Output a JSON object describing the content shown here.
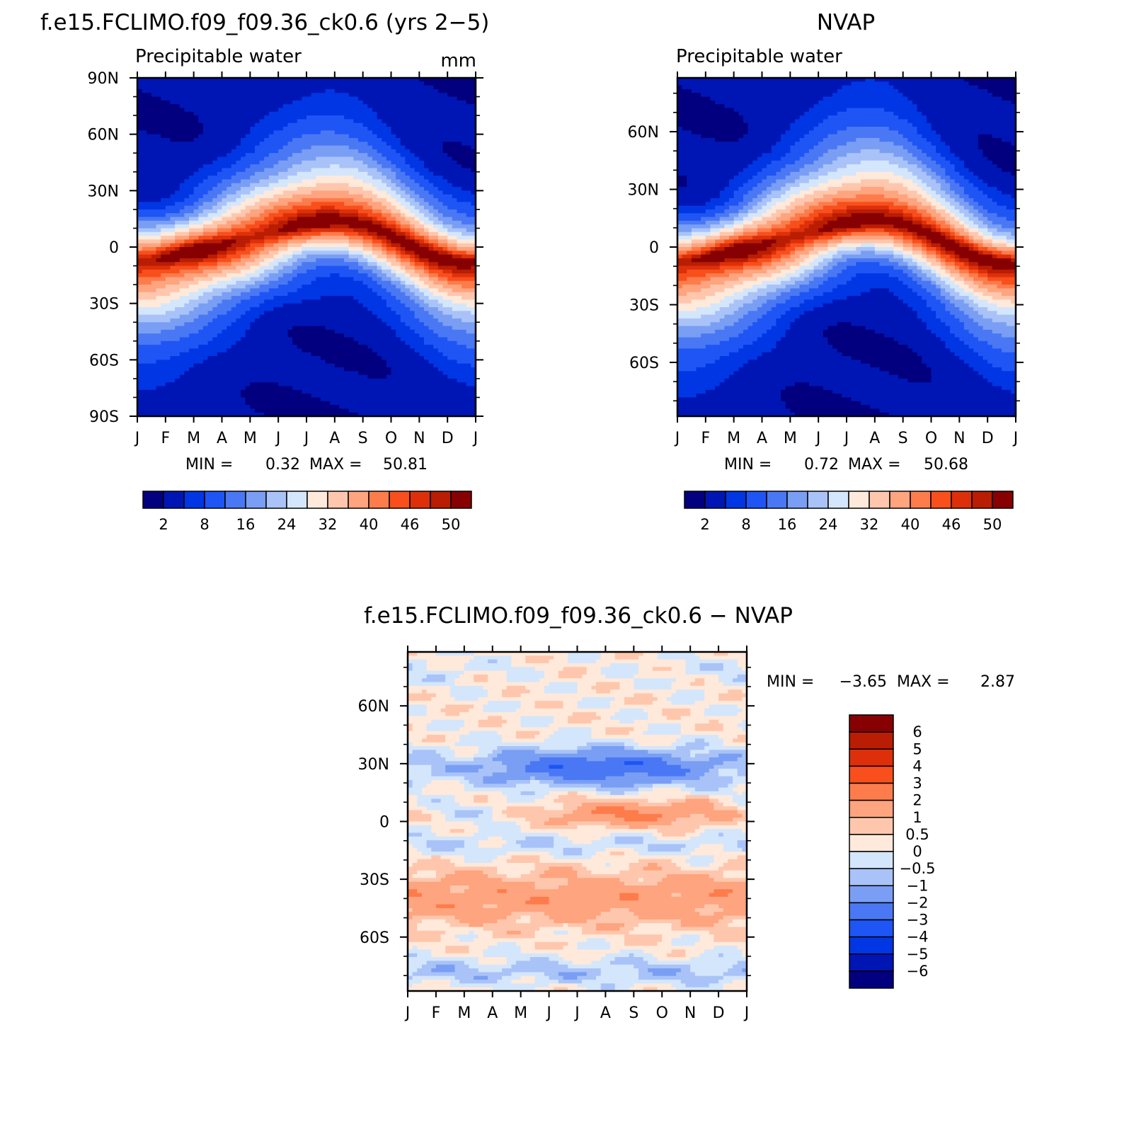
{
  "chart_data": [
    {
      "type": "heatmap",
      "id": "model",
      "title": "f.e15.FCLIMO.f09_f09.36_ck0.6 (yrs 2−5)",
      "subtitle_left": "Precipitable water",
      "subtitle_right": "mm",
      "x_ticks": [
        "J",
        "F",
        "M",
        "A",
        "M",
        "J",
        "J",
        "A",
        "S",
        "O",
        "N",
        "D",
        "J"
      ],
      "y_ticks": [
        "90N",
        "60N",
        "30N",
        "0",
        "30S",
        "60S",
        "90S"
      ],
      "y_tick_values": [
        90,
        60,
        30,
        0,
        -30,
        -60,
        -90
      ],
      "ylim": [
        -90,
        90
      ],
      "stats": {
        "min_label": "MIN =",
        "min": "0.32",
        "max_label": "MAX =",
        "max": "50.81"
      },
      "levels": [
        2,
        5,
        8,
        12,
        16,
        20,
        24,
        28,
        32,
        36,
        40,
        43,
        46,
        48,
        50
      ],
      "colorbar_labels": [
        "2",
        "8",
        "16",
        "24",
        "32",
        "40",
        "46",
        "50"
      ],
      "colors": [
        "#02007f",
        "#0016b4",
        "#0136e4",
        "#1e55f4",
        "#4a78f4",
        "#799ef4",
        "#a9c3f8",
        "#d4e6fb",
        "#ffe9da",
        "#fec7ad",
        "#fea47f",
        "#fd7c4c",
        "#f84f1c",
        "#dd300a",
        "#b91d03",
        "#870002"
      ],
      "params": {
        "amp_n": 0.35,
        "amp_s": 0.3,
        "shift": 10
      }
    },
    {
      "type": "heatmap",
      "id": "obs",
      "title": "NVAP",
      "subtitle_left": "Precipitable water",
      "x_ticks": [
        "J",
        "F",
        "M",
        "A",
        "M",
        "J",
        "J",
        "A",
        "S",
        "O",
        "N",
        "D",
        "J"
      ],
      "y_ticks": [
        "60N",
        "30N",
        "0",
        "30S",
        "60S"
      ],
      "y_tick_values": [
        60,
        30,
        0,
        -30,
        -60
      ],
      "ylim": [
        -88,
        88
      ],
      "stats": {
        "min_label": "MIN =",
        "min": "0.72",
        "max_label": "MAX =",
        "max": "50.68"
      },
      "levels": [
        2,
        5,
        8,
        12,
        16,
        20,
        24,
        28,
        32,
        36,
        40,
        43,
        46,
        48,
        50
      ],
      "colorbar_labels": [
        "2",
        "8",
        "16",
        "24",
        "32",
        "40",
        "46",
        "50"
      ],
      "colors": [
        "#02007f",
        "#0016b4",
        "#0136e4",
        "#1e55f4",
        "#4a78f4",
        "#799ef4",
        "#a9c3f8",
        "#d4e6fb",
        "#ffe9da",
        "#fec7ad",
        "#fea47f",
        "#fd7c4c",
        "#f84f1c",
        "#dd300a",
        "#b91d03",
        "#870002"
      ],
      "params": {
        "amp_n": 0.42,
        "amp_s": 0.34,
        "shift": 10
      }
    },
    {
      "type": "heatmap",
      "id": "diff",
      "title": "f.e15.FCLIMO.f09_f09.36_ck0.6 − NVAP",
      "x_ticks": [
        "J",
        "F",
        "M",
        "A",
        "M",
        "J",
        "J",
        "A",
        "S",
        "O",
        "N",
        "D",
        "J"
      ],
      "y_ticks": [
        "60N",
        "30N",
        "0",
        "30S",
        "60S"
      ],
      "y_tick_values": [
        60,
        30,
        0,
        -30,
        -60
      ],
      "ylim": [
        -88,
        88
      ],
      "stats": {
        "min_label": "MIN =",
        "min": "−3.65",
        "max_label": "MAX =",
        "max": "2.87"
      },
      "levels": [
        -6,
        -5,
        -4,
        -3,
        -2,
        -1,
        -0.5,
        0,
        0.5,
        1,
        2,
        3,
        4,
        5,
        6
      ],
      "colorbar_labels": [
        "6",
        "5",
        "4",
        "3",
        "2",
        "1",
        "0.5",
        "0",
        "−0.5",
        "−1",
        "−2",
        "−3",
        "−4",
        "−5",
        "−6"
      ],
      "colors": [
        "#02007f",
        "#0016b4",
        "#0136e4",
        "#1e55f4",
        "#4a78f4",
        "#799ef4",
        "#a9c3f8",
        "#d4e6fb",
        "#ffe9da",
        "#fec7ad",
        "#fea47f",
        "#fd7c4c",
        "#f84f1c",
        "#dd300a",
        "#b91d03",
        "#870002"
      ]
    }
  ]
}
